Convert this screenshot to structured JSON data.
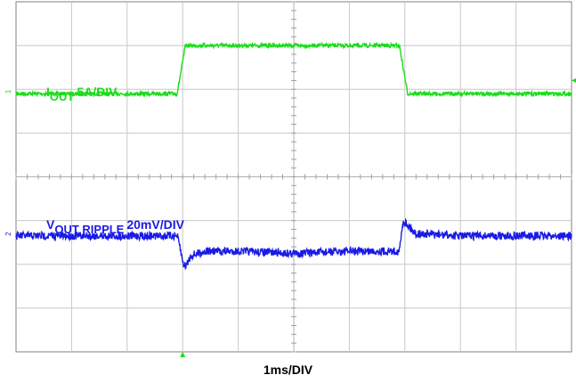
{
  "chart_data": {
    "type": "line",
    "xlabel": "1ms/DIV",
    "grid": true,
    "divisions": {
      "x": 10,
      "y": 8
    },
    "colors": {
      "grid": "#c8c8c8",
      "frame": "#808080",
      "iout": "#1adc1a",
      "vout": "#1a1ae6"
    },
    "series": [
      {
        "name": "IOUT",
        "label_main": "I",
        "label_sub": "OUT",
        "label_scale": "5A/DIV",
        "x_div": [
          0,
          2.9,
          3.05,
          6.9,
          7.05,
          10
        ],
        "y_div": [
          5.9,
          5.9,
          7.0,
          7.0,
          5.9,
          5.9
        ]
      },
      {
        "name": "VOUT RIPPLE",
        "label_main": "V",
        "label_sub": "OUT RIPPLE",
        "label_scale": "20mV/DIV",
        "x_div": [
          0,
          2.9,
          2.95,
          3.0,
          3.05,
          3.15,
          3.4,
          4.0,
          5.0,
          6.0,
          6.9,
          6.93,
          6.97,
          7.05,
          7.2,
          8.0,
          10
        ],
        "y_div": [
          2.65,
          2.65,
          2.4,
          2.05,
          1.95,
          2.2,
          2.3,
          2.3,
          2.25,
          2.3,
          2.3,
          2.6,
          3.0,
          2.9,
          2.7,
          2.65,
          2.65
        ]
      }
    ]
  }
}
